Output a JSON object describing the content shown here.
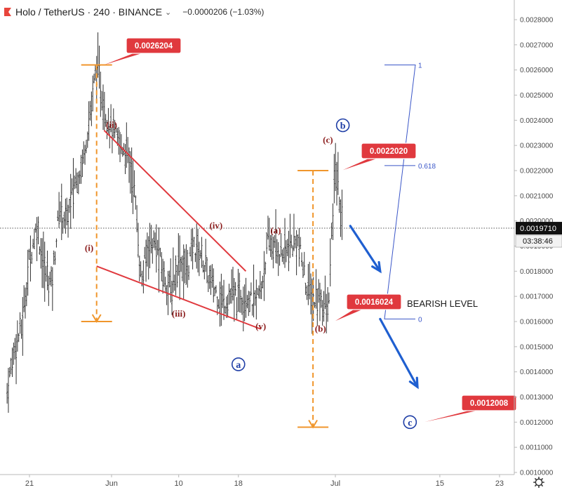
{
  "header": {
    "symbol_title": "Holo / TetherUS · 240 · BINANCE",
    "change": "−0.0000206 (−1.03%)"
  },
  "colors": {
    "price_bar": "#1a1a1a",
    "wedge_line": "#e0393e",
    "fib_measure": "#f0962c",
    "callout": "#e0393e",
    "wave_label": "#8b1d1d",
    "blue_wave": "#1f3ea6",
    "arrow": "#1f5fd0",
    "axis_text": "#4a4a4a",
    "crosshair": "#555555"
  },
  "chart_data": {
    "type": "candlestick",
    "title": "Holo / TetherUS · 240 · BINANCE",
    "y_axis": {
      "min": 0.001,
      "max": 0.0028,
      "ticks": [
        "0.0028000",
        "0.0027000",
        "0.0026000",
        "0.0025000",
        "0.0024000",
        "0.0023000",
        "0.0022000",
        "0.0021000",
        "0.0020000",
        "0.0019000",
        "0.0018000",
        "0.0017000",
        "0.0016000",
        "0.0015000",
        "0.0014000",
        "0.0013000",
        "0.0012000",
        "0.0011000",
        "0.0010000"
      ]
    },
    "x_axis": {
      "ticks": [
        "21",
        "Jun",
        "10",
        "18",
        "Jul",
        "15",
        "23"
      ],
      "tick_dates": [
        "2019-05-21",
        "2019-06-01",
        "2019-06-10",
        "2019-06-18",
        "2019-07-01",
        "2019-07-15",
        "2019-07-23"
      ]
    },
    "current_price": "0.0019710",
    "countdown": "03:38:46",
    "price_path": [
      [
        "2019-05-18",
        0.00132
      ],
      [
        "2019-05-19",
        0.0015
      ],
      [
        "2019-05-20",
        0.00158
      ],
      [
        "2019-05-21",
        0.00185
      ],
      [
        "2019-05-22",
        0.00198
      ],
      [
        "2019-05-23",
        0.0018
      ],
      [
        "2019-05-24",
        0.00175
      ],
      [
        "2019-05-25",
        0.00205
      ],
      [
        "2019-05-26",
        0.002
      ],
      [
        "2019-05-27",
        0.00215
      ],
      [
        "2019-05-28",
        0.00222
      ],
      [
        "2019-05-29",
        0.0024
      ],
      [
        "2019-05-30",
        0.00262
      ],
      [
        "2019-05-31",
        0.00245
      ],
      [
        "2019-06-01",
        0.00236
      ],
      [
        "2019-06-02",
        0.00231
      ],
      [
        "2019-06-03",
        0.00228
      ],
      [
        "2019-06-04",
        0.00215
      ],
      [
        "2019-06-05",
        0.00175
      ],
      [
        "2019-06-06",
        0.00192
      ],
      [
        "2019-06-07",
        0.0019
      ],
      [
        "2019-06-08",
        0.00178
      ],
      [
        "2019-06-09",
        0.00172
      ],
      [
        "2019-06-10",
        0.00185
      ],
      [
        "2019-06-11",
        0.0018
      ],
      [
        "2019-06-12",
        0.0019
      ],
      [
        "2019-06-13",
        0.00187
      ],
      [
        "2019-06-14",
        0.00177
      ],
      [
        "2019-06-15",
        0.00172
      ],
      [
        "2019-06-16",
        0.00167
      ],
      [
        "2019-06-17",
        0.00171
      ],
      [
        "2019-06-18",
        0.00169
      ],
      [
        "2019-06-19",
        0.00172
      ],
      [
        "2019-06-20",
        0.00167
      ],
      [
        "2019-06-21",
        0.00172
      ],
      [
        "2019-06-22",
        0.00192
      ],
      [
        "2019-06-23",
        0.00189
      ],
      [
        "2019-06-24",
        0.00187
      ],
      [
        "2019-06-25",
        0.0019
      ],
      [
        "2019-06-26",
        0.00192
      ],
      [
        "2019-06-27",
        0.00176
      ],
      [
        "2019-06-28",
        0.00168
      ],
      [
        "2019-06-29",
        0.0017
      ],
      [
        "2019-06-30",
        0.00163
      ],
      [
        "2019-07-01",
        0.00222
      ],
      [
        "2019-07-02",
        0.00197
      ]
    ],
    "wave_labels": [
      {
        "text": "(i)",
        "date": "2019-05-29",
        "price": 0.00188
      },
      {
        "text": "(ii)",
        "date": "2019-06-01",
        "price": 0.00237
      },
      {
        "text": "(iii)",
        "date": "2019-06-10",
        "price": 0.00162
      },
      {
        "text": "(iv)",
        "date": "2019-06-15",
        "price": 0.00197
      },
      {
        "text": "(v)",
        "date": "2019-06-21",
        "price": 0.00157
      },
      {
        "text": "(a)",
        "date": "2019-06-23",
        "price": 0.00195
      },
      {
        "text": "(b)",
        "date": "2019-06-29",
        "price": 0.00156
      },
      {
        "text": "(c)",
        "date": "2019-06-30",
        "price": 0.00231
      }
    ],
    "circled_labels": [
      {
        "text": "a",
        "date": "2019-06-18",
        "price": 0.00143
      },
      {
        "text": "b",
        "date": "2019-07-02",
        "price": 0.00238
      },
      {
        "text": "c",
        "date": "2019-07-11",
        "price": 0.0012
      }
    ],
    "callouts": [
      {
        "text": "0.0026204",
        "value": 0.0026204
      },
      {
        "text": "0.0022020",
        "value": 0.002202
      },
      {
        "text": "0.0016024",
        "value": 0.0016024
      },
      {
        "text": "0.0012008",
        "value": 0.0012008
      }
    ],
    "annotation": "BEARISH LEVEL",
    "fib_levels": [
      {
        "label": "1",
        "price": 0.00262
      },
      {
        "label": "0.618",
        "price": 0.00222
      },
      {
        "label": "0",
        "price": 0.00161
      }
    ],
    "wedge_lines": [
      [
        [
          "2019-05-31",
          0.00236
        ],
        [
          "2019-06-19",
          0.0018
        ]
      ],
      [
        [
          "2019-05-30",
          0.00182
        ],
        [
          "2019-06-21",
          0.00157
        ]
      ]
    ],
    "measure_bars": [
      {
        "date": "2019-05-30",
        "top": 0.00262,
        "bottom": 0.0016
      },
      {
        "date": "2019-06-28",
        "top": 0.0022,
        "bottom": 0.00118
      }
    ],
    "arrows": [
      [
        [
          "2019-07-03",
          0.00198
        ],
        [
          "2019-07-07",
          0.0018
        ]
      ],
      [
        [
          "2019-07-07",
          0.00161
        ],
        [
          "2019-07-12",
          0.00134
        ]
      ]
    ]
  }
}
